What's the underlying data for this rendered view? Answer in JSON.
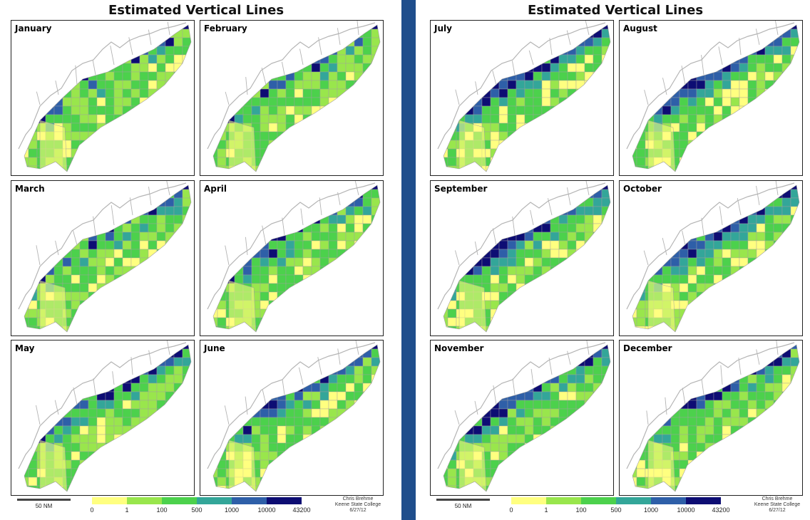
{
  "halves": [
    {
      "title": "Estimated Vertical Lines",
      "scale_label": "50 NM",
      "credit": [
        "Chris Brehme",
        "Keene State College",
        "6/27/12"
      ],
      "months": [
        {
          "name": "January",
          "blue_level": 0.35,
          "yellow_level": 0.25
        },
        {
          "name": "February",
          "blue_level": 0.35,
          "yellow_level": 0.25
        },
        {
          "name": "March",
          "blue_level": 0.4,
          "yellow_level": 0.2
        },
        {
          "name": "April",
          "blue_level": 0.5,
          "yellow_level": 0.3
        },
        {
          "name": "May",
          "blue_level": 0.65,
          "yellow_level": 0.2
        },
        {
          "name": "June",
          "blue_level": 0.75,
          "yellow_level": 0.35
        }
      ]
    },
    {
      "title": "Estimated Vertical Lines",
      "scale_label": "50 NM",
      "credit": [
        "Chris Brehme",
        "Keene State College",
        "6/27/12"
      ],
      "months": [
        {
          "name": "July",
          "blue_level": 0.95,
          "yellow_level": 0.55
        },
        {
          "name": "August",
          "blue_level": 0.9,
          "yellow_level": 0.5
        },
        {
          "name": "September",
          "blue_level": 0.9,
          "yellow_level": 0.4
        },
        {
          "name": "October",
          "blue_level": 0.85,
          "yellow_level": 0.35
        },
        {
          "name": "November",
          "blue_level": 0.8,
          "yellow_level": 0.25
        },
        {
          "name": "December",
          "blue_level": 0.55,
          "yellow_level": 0.25
        }
      ]
    }
  ],
  "legend": {
    "ticks": [
      "0",
      "1",
      "100",
      "500",
      "1000",
      "10000",
      "43200"
    ],
    "colors": [
      "#ffff80",
      "#99e64c",
      "#4cd14c",
      "#33a699",
      "#2e5fa8",
      "#0d0d73"
    ]
  },
  "colors": {
    "divider": "#1f4e8c",
    "coast": "#b4b4b4",
    "grid_line": "#a0a0a0"
  }
}
